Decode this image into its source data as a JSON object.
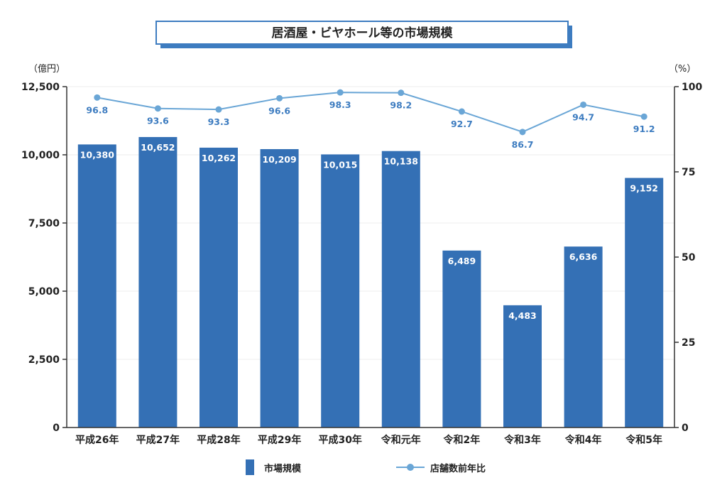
{
  "colors": {
    "bar": "#3470b5",
    "line": "#6aa6d6",
    "label_blue": "#3d7cc0",
    "title_border": "#3d7cc0",
    "axis": "#333333",
    "grid": "#ececec"
  },
  "chart_data": {
    "type": "bar",
    "title": "居酒屋・ビヤホール等の市場規模",
    "left_axis_unit": "（億円）",
    "right_axis_unit": "（%）",
    "categories": [
      "平成26年",
      "平成27年",
      "平成28年",
      "平成29年",
      "平成30年",
      "令和元年",
      "令和2年",
      "令和3年",
      "令和4年",
      "令和5年"
    ],
    "y_left": {
      "range": [
        0,
        12500
      ],
      "ticks": [
        0,
        2500,
        5000,
        7500,
        10000,
        12500
      ],
      "tick_labels": [
        "0",
        "2,500",
        "5,000",
        "7,500",
        "10,000",
        "12,500"
      ]
    },
    "y_right": {
      "range": [
        0,
        100
      ],
      "ticks": [
        0,
        25,
        50,
        75,
        100
      ],
      "tick_labels": [
        "0",
        "25",
        "50",
        "75",
        "100"
      ]
    },
    "grid": true,
    "legend_position": "bottom",
    "series": [
      {
        "name": "市場規模",
        "type": "bar",
        "axis": "left",
        "values": [
          10380,
          10652,
          10262,
          10209,
          10015,
          10138,
          6489,
          4483,
          6636,
          9152
        ],
        "labels": [
          "10,380",
          "10,652",
          "10,262",
          "10,209",
          "10,015",
          "10,138",
          "6,489",
          "4,483",
          "6,636",
          "9,152"
        ]
      },
      {
        "name": "店舗数前年比",
        "type": "line",
        "axis": "right",
        "values": [
          96.8,
          93.6,
          93.3,
          96.6,
          98.3,
          98.2,
          92.7,
          86.7,
          94.7,
          91.2
        ],
        "labels": [
          "96.8",
          "93.6",
          "93.3",
          "96.6",
          "98.3",
          "98.2",
          "92.7",
          "86.7",
          "94.7",
          "91.2"
        ]
      }
    ]
  }
}
